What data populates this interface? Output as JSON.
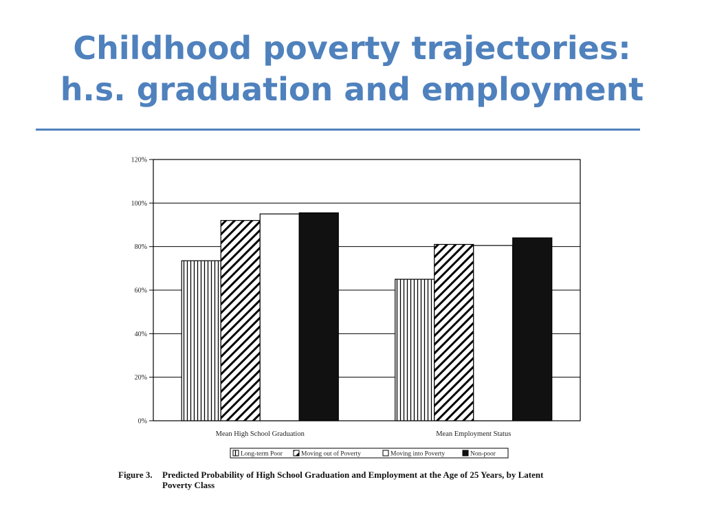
{
  "slide": {
    "title_line1": "Childhood poverty trajectories:",
    "title_line2": "h.s. graduation and employment"
  },
  "caption": {
    "label": "Figure 3.",
    "line1": "Predicted Probability of High School Graduation and Employment at the Age of 25 Years, by Latent",
    "line2": "Poverty Class"
  },
  "colors": {
    "title": "#4f81bd",
    "bar_outline": "#000000",
    "non_poor_fill": "#111111",
    "moving_into_fill": "#ffffff"
  },
  "chart_data": {
    "type": "bar",
    "categories": [
      "Mean High School Graduation",
      "Mean Employment Status"
    ],
    "series": [
      {
        "name": "Long-term Poor",
        "pattern": "vertical-lines",
        "values": [
          73.5,
          65
        ]
      },
      {
        "name": "Moving out of Poverty",
        "pattern": "diagonal-hatch",
        "values": [
          92,
          81
        ]
      },
      {
        "name": "Moving into Poverty",
        "pattern": "white",
        "values": [
          95,
          80.5
        ]
      },
      {
        "name": "Non-poor",
        "pattern": "black",
        "values": [
          95.5,
          84
        ]
      }
    ],
    "yticks": [
      "0%",
      "20%",
      "40%",
      "60%",
      "80%",
      "100%",
      "120%"
    ],
    "ylim": [
      0,
      120
    ],
    "grid": true,
    "legend_position": "bottom"
  }
}
